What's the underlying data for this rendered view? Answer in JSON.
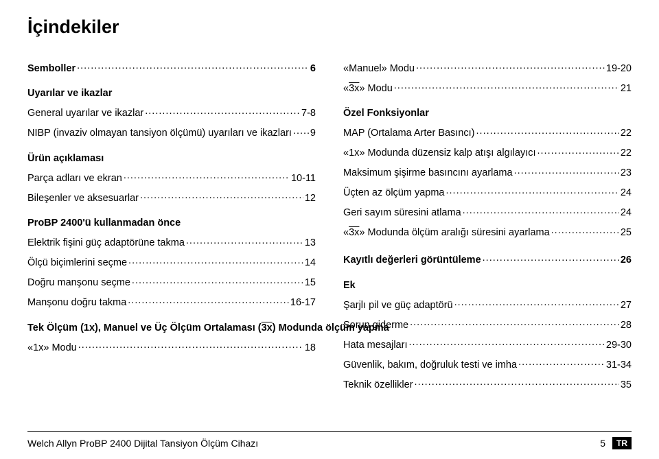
{
  "heading": "İçindekiler",
  "columns": {
    "left": [
      {
        "type": "item",
        "section": true,
        "label": "Semboller",
        "page": "6"
      },
      {
        "type": "gap"
      },
      {
        "type": "item",
        "section": true,
        "label": "Uyarılar ve ikazlar",
        "page": ""
      },
      {
        "type": "item",
        "label": "General uyarılar ve ikazlar",
        "page": "7-8"
      },
      {
        "type": "item",
        "label": "NIBP (invaziv olmayan tansiyon ölçümü) uyarıları ve ikazları",
        "page": "9"
      },
      {
        "type": "gap"
      },
      {
        "type": "item",
        "section": true,
        "label": "Ürün açıklaması",
        "page": ""
      },
      {
        "type": "item",
        "label": "Parça adları ve ekran",
        "page": "10-11"
      },
      {
        "type": "item",
        "label": "Bileşenler ve aksesuarlar",
        "page": "12"
      },
      {
        "type": "gap"
      },
      {
        "type": "item",
        "section": true,
        "label": "ProBP 2400'ü kullanmadan önce",
        "page": ""
      },
      {
        "type": "item",
        "label": "Elektrik fişini güç adaptörüne takma",
        "page": "13"
      },
      {
        "type": "item",
        "label": "Ölçü biçimlerini seçme",
        "page": "14"
      },
      {
        "type": "item",
        "label": "Doğru manşonu seçme",
        "page": "15"
      },
      {
        "type": "item",
        "label": "Manşonu doğru takma",
        "page": "16-17"
      },
      {
        "type": "gap"
      },
      {
        "type": "item",
        "section": true,
        "label_html": "Tek Ölçüm (1x), Manuel ve Üç Ölçüm Ortalaması (<span class=\"ov\">3x</span>) Modunda ölçüm yapma",
        "page": "",
        "wrap": true
      },
      {
        "type": "item",
        "label": "«1x» Modu",
        "page": "18"
      }
    ],
    "right": [
      {
        "type": "item",
        "label": "«Manuel» Modu",
        "page": "19-20"
      },
      {
        "type": "item",
        "label_html": "«<span class=\"ov\">3x</span>» Modu",
        "page": "21"
      },
      {
        "type": "gap"
      },
      {
        "type": "item",
        "section": true,
        "label": "Özel Fonksiyonlar",
        "page": ""
      },
      {
        "type": "item",
        "label": "MAP (Ortalama Arter Basıncı)",
        "page": "22"
      },
      {
        "type": "item",
        "label": "«1x» Modunda düzensiz kalp atışı algılayıcı",
        "page": "22"
      },
      {
        "type": "item",
        "label": "Maksimum şişirme basıncını ayarlama",
        "page": "23"
      },
      {
        "type": "item",
        "label": "Üçten az ölçüm yapma",
        "page": "24"
      },
      {
        "type": "item",
        "label": "Geri sayım süresini atlama",
        "page": "24"
      },
      {
        "type": "item",
        "label_html": "«<span class=\"ov\">3x</span>» Modunda ölçüm aralığı süresini ayarlama",
        "page": "25"
      },
      {
        "type": "gap"
      },
      {
        "type": "item",
        "section": true,
        "label": "Kayıtlı değerleri görüntüleme",
        "page": "26"
      },
      {
        "type": "gap"
      },
      {
        "type": "item",
        "section": true,
        "label": "Ek",
        "page": ""
      },
      {
        "type": "item",
        "label": "Şarjlı pil ve güç adaptörü",
        "page": "27"
      },
      {
        "type": "item",
        "label": "Sorun giderme",
        "page": "28"
      },
      {
        "type": "item",
        "label": "Hata mesajları",
        "page": "29-30"
      },
      {
        "type": "item",
        "label": "Güvenlik, bakım, doğruluk testi ve imha",
        "page": "31-34"
      },
      {
        "type": "item",
        "label": "Teknik özellikler",
        "page": "35"
      }
    ]
  },
  "footer": {
    "product": "Welch Allyn ProBP 2400 Dijital Tansiyon Ölçüm Cihazı",
    "pagenum": "5",
    "lang": "TR"
  }
}
